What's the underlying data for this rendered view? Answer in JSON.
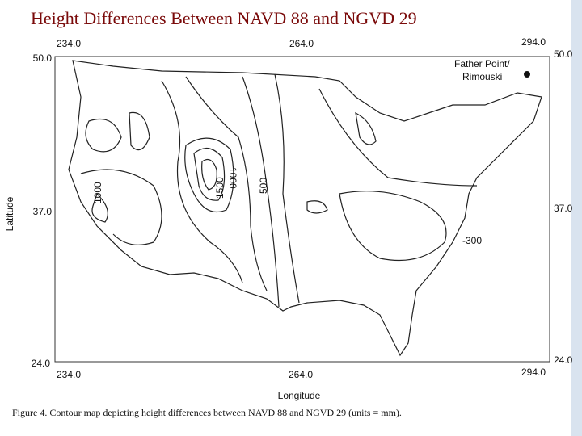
{
  "title": "Height Differences Between NAVD 88 and NGVD 29",
  "map": {
    "x_ticks_top": [
      "234.0",
      "264.0",
      "294.0"
    ],
    "x_ticks_bottom": [
      "234.0",
      "264.0",
      "294.0"
    ],
    "y_ticks_left": [
      "50.0",
      "37.0",
      "24.0"
    ],
    "y_ticks_right": [
      "50.0",
      "37.0",
      "24.0"
    ],
    "x_label": "Longitude",
    "y_label": "Latitude",
    "annotation": [
      "Father Point/",
      "Rimouski"
    ],
    "contour_labels": [
      "1000",
      "1500",
      "1000",
      "500",
      "-300"
    ]
  },
  "caption": "Figure 4. Contour map depicting height differences between NAVD 88 and NGVD 29 (units = mm)."
}
